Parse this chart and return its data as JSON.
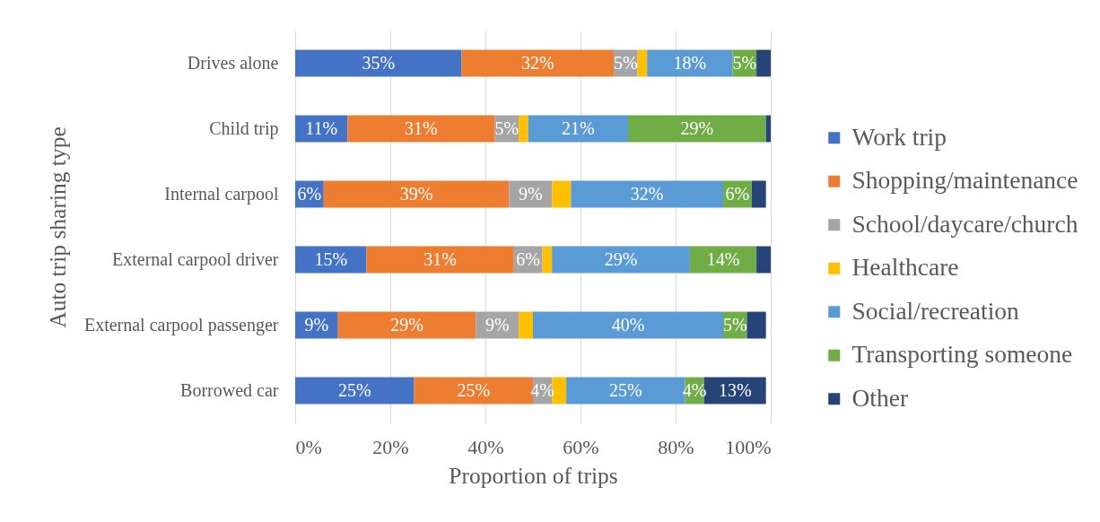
{
  "chart_data": {
    "type": "bar",
    "orientation": "horizontal",
    "stacked": true,
    "xlabel": "Proportion of trips",
    "ylabel": "Auto trip sharing type",
    "categories": [
      "Drives alone",
      "Child trip",
      "Internal carpool",
      "External carpool driver",
      "External carpool passenger",
      "Borrowed car"
    ],
    "xlim": [
      0,
      100
    ],
    "xticks": [
      {
        "value": 0,
        "label": "0%"
      },
      {
        "value": 20,
        "label": "20%"
      },
      {
        "value": 40,
        "label": "40%"
      },
      {
        "value": 60,
        "label": "60%"
      },
      {
        "value": 80,
        "label": "80%"
      },
      {
        "value": 100,
        "label": "100%"
      }
    ],
    "grid": "x",
    "legend": "right",
    "series": [
      {
        "name": "Work trip",
        "color": "#4472c4",
        "values": [
          35,
          11,
          6,
          15,
          9,
          25
        ],
        "value_labels": [
          "35%",
          "11%",
          "6%",
          "15%",
          "9%",
          "25%"
        ]
      },
      {
        "name": "Shopping/maintenance",
        "color": "#ed7d31",
        "values": [
          32,
          31,
          39,
          31,
          29,
          25
        ],
        "value_labels": [
          "32%",
          "31%",
          "39%",
          "31%",
          "29%",
          "25%"
        ]
      },
      {
        "name": "School/daycare/church",
        "color": "#a5a5a5",
        "values": [
          5,
          5,
          9,
          6,
          9,
          4
        ],
        "value_labels": [
          "5%",
          "5%",
          "9%",
          "6%",
          "9%",
          "4%"
        ]
      },
      {
        "name": "Healthcare",
        "color": "#ffc000",
        "values": [
          2,
          2,
          4,
          2,
          3,
          3
        ]
      },
      {
        "name": "Social/recreation",
        "color": "#5b9bd5",
        "values": [
          18,
          21,
          32,
          29,
          40,
          25
        ],
        "value_labels": [
          "18%",
          "21%",
          "32%",
          "29%",
          "40%",
          "25%"
        ]
      },
      {
        "name": "Transporting someone",
        "color": "#70ad47",
        "values": [
          5,
          29,
          6,
          14,
          5,
          4
        ],
        "value_labels": [
          "5%",
          "29%",
          "6%",
          "14%",
          "5%",
          "4%"
        ]
      },
      {
        "name": "Other",
        "color": "#264478",
        "values": [
          3,
          1,
          3,
          3,
          4,
          13
        ],
        "value_labels": [
          null,
          null,
          null,
          null,
          null,
          "13%"
        ]
      }
    ]
  }
}
